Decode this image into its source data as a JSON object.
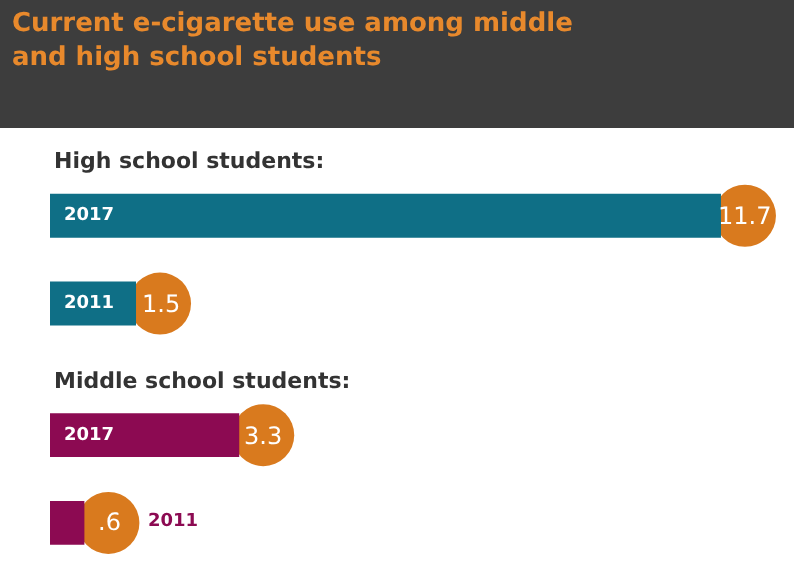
{
  "chart_data": {
    "type": "bar",
    "orientation": "horizontal",
    "title": "Current e-cigarette use among middle and high school students",
    "categories": [
      "2017",
      "2011",
      "2017",
      "2011"
    ],
    "values": [
      11.7,
      1.5,
      3.3,
      0.6
    ],
    "value_labels": [
      "11.7",
      "1.5",
      "3.3",
      ".6"
    ],
    "colors": [
      "#0f6f86",
      "#0f6f86",
      "#8c0a52",
      "#8c0a52"
    ],
    "annotations": [
      "High school students:",
      "Middle school students:"
    ]
  }
}
